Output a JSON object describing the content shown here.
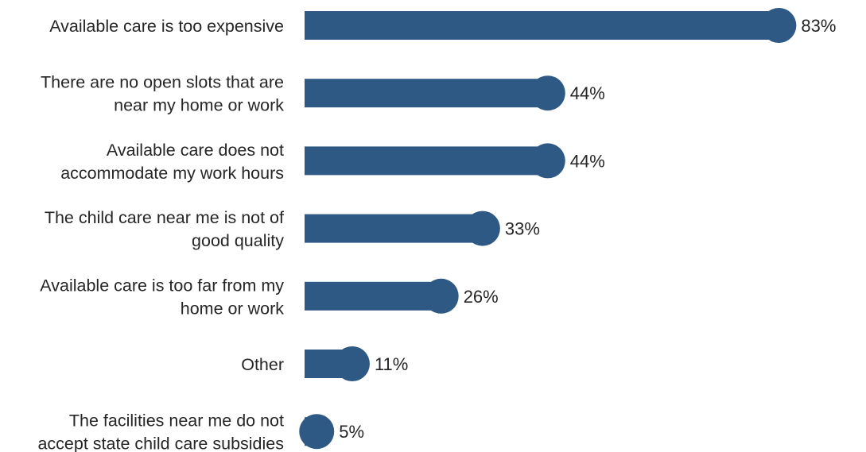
{
  "chart_data": {
    "type": "bar",
    "orientation": "horizontal",
    "categories": [
      [
        "Available care is too expensive"
      ],
      [
        "There are no open slots that are",
        "near my home or work"
      ],
      [
        "Available care does not",
        "accommodate my work hours"
      ],
      [
        "The child care near me is not of",
        "good quality"
      ],
      [
        "Available care is too far from my",
        "home or work"
      ],
      [
        "Other"
      ],
      [
        "The facilities near me do not",
        "accept state child care subsidies"
      ]
    ],
    "values": [
      83,
      44,
      44,
      33,
      26,
      11,
      5
    ],
    "value_labels": [
      "83%",
      "44%",
      "44%",
      "33%",
      "26%",
      "11%",
      "5%"
    ],
    "unit": "%",
    "xlim": [
      0,
      100
    ],
    "grid": false,
    "legend": "none",
    "bar_color": "#2e5984"
  }
}
